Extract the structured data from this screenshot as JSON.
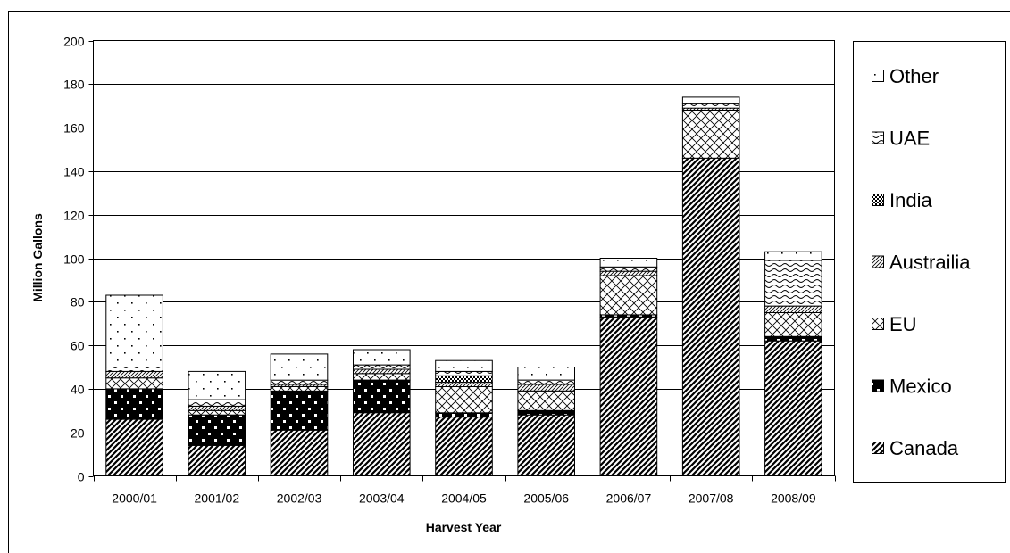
{
  "chart_data": {
    "type": "bar",
    "stacked": true,
    "title": "",
    "xlabel": "Harvest Year",
    "ylabel": "Million Gallons",
    "ylim": [
      0,
      200
    ],
    "yticks": [
      "0",
      "20",
      "40",
      "60",
      "80",
      "100",
      "120",
      "140",
      "160",
      "180",
      "200"
    ],
    "grid": true,
    "legend_position": "right",
    "categories": [
      "2000/01",
      "2001/02",
      "2002/03",
      "2003/04",
      "2004/05",
      "2005/06",
      "2006/07",
      "2007/08",
      "2008/09"
    ],
    "series": [
      {
        "name": "Canada",
        "pattern": "diagonal-dense",
        "values": [
          26,
          14,
          21,
          29,
          27,
          28,
          73,
          146,
          62
        ]
      },
      {
        "name": "Mexico",
        "pattern": "black-dotted",
        "values": [
          14,
          14,
          18,
          15,
          2,
          2,
          1,
          0,
          2
        ]
      },
      {
        "name": "EU",
        "pattern": "crosshatch",
        "values": [
          5,
          2,
          2,
          3,
          12,
          9,
          18,
          22,
          11
        ]
      },
      {
        "name": "Austrailia",
        "pattern": "diagonal-light",
        "values": [
          3,
          2,
          1,
          2,
          2,
          3,
          2,
          1,
          3
        ]
      },
      {
        "name": "India",
        "pattern": "checker",
        "values": [
          0,
          0,
          0,
          0,
          3,
          0,
          0,
          0,
          0
        ]
      },
      {
        "name": "UAE",
        "pattern": "wave",
        "values": [
          2,
          3,
          2,
          2,
          2,
          2,
          2,
          2,
          21
        ]
      },
      {
        "name": "Other",
        "pattern": "dots",
        "values": [
          33,
          13,
          12,
          7,
          5,
          6,
          4,
          3,
          4
        ]
      }
    ],
    "legend_order": [
      "Other",
      "UAE",
      "India",
      "Austrailia",
      "EU",
      "Mexico",
      "Canada"
    ]
  }
}
